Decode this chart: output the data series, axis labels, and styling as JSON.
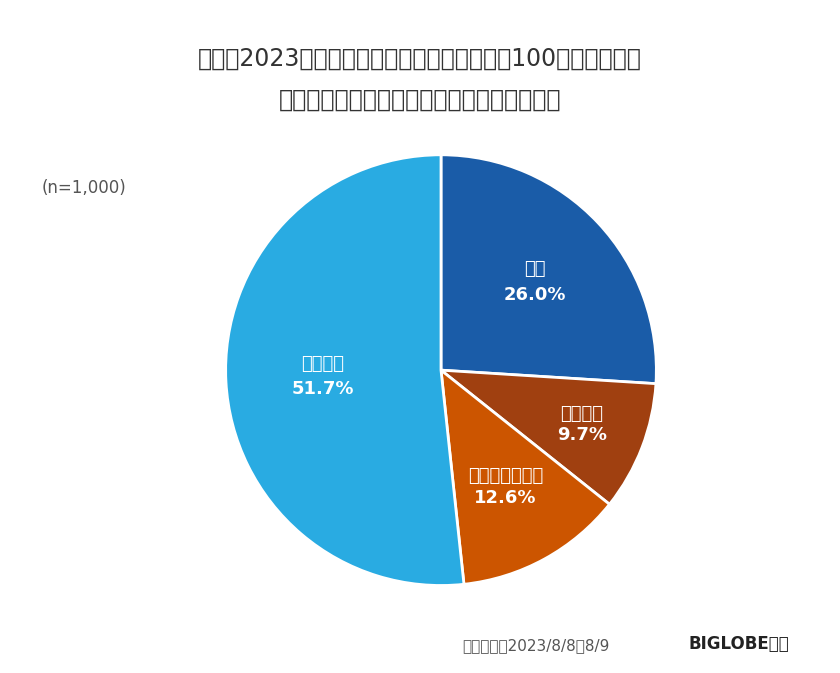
{
  "title_line1": "今年（2023年）は関東大震災が発生してから100年となるが、",
  "title_line2": "改めて防災に対する意識を高めたいと思うか",
  "labels": [
    "思う",
    "やや思う",
    "あまり思わない",
    "思わない"
  ],
  "values": [
    26.0,
    51.7,
    12.6,
    9.7
  ],
  "colors": [
    "#1a5ca8",
    "#29abe2",
    "#cc5500",
    "#a04010"
  ],
  "sample_note": "(n=1,000)",
  "footer_note": "調査期間：2023/8/8〜8/9",
  "footer_brand": "BIGLOBE調べ",
  "background_color": "#ffffff",
  "title_fontsize": 17,
  "label_fontsize": 13,
  "pct_fontsize": 13
}
